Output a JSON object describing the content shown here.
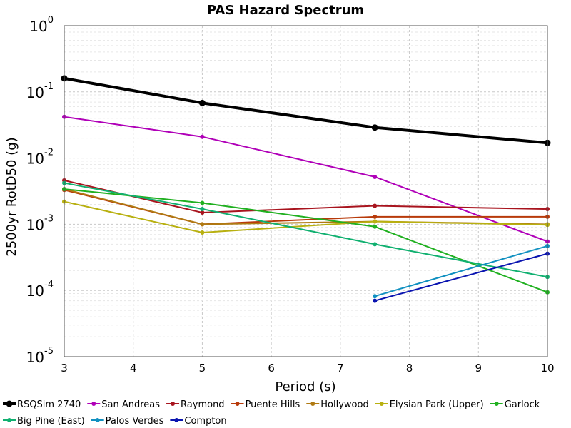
{
  "chart_data": {
    "type": "line",
    "title": "PAS Hazard Spectrum",
    "xlabel": "Period (s)",
    "ylabel": "2500yr RotD50 (g)",
    "xlim": [
      3,
      10
    ],
    "ylim": [
      1e-05,
      1
    ],
    "yscale": "log",
    "grid": true,
    "legend_position": "bottom",
    "x_ticks": [
      "3",
      "4",
      "5",
      "6",
      "7",
      "8",
      "9",
      "10"
    ],
    "y_ticks": [
      {
        "base": "10",
        "exp": "0",
        "value": 1
      },
      {
        "base": "10",
        "exp": "-1",
        "value": 0.1
      },
      {
        "base": "10",
        "exp": "-2",
        "value": 0.01
      },
      {
        "base": "10",
        "exp": "-3",
        "value": 0.001
      },
      {
        "base": "10",
        "exp": "-4",
        "value": 0.0001
      },
      {
        "base": "10",
        "exp": "-5",
        "value": 1e-05
      }
    ],
    "series": [
      {
        "name": "RSQSim 2740",
        "color": "#000000",
        "bold": true,
        "x": [
          3,
          5,
          7.5,
          10
        ],
        "y": [
          0.16,
          0.068,
          0.029,
          0.017
        ]
      },
      {
        "name": "San Andreas",
        "color": "#b000b8",
        "x": [
          3,
          5,
          7.5,
          10
        ],
        "y": [
          0.042,
          0.021,
          0.0052,
          0.00055
        ]
      },
      {
        "name": "Raymond",
        "color": "#a8141e",
        "x": [
          3,
          5,
          7.5,
          10
        ],
        "y": [
          0.0046,
          0.0015,
          0.0019,
          0.0017
        ]
      },
      {
        "name": "Puente Hills",
        "color": "#b83a0a",
        "x": [
          3,
          5,
          7.5,
          10
        ],
        "y": [
          0.0033,
          0.001,
          0.0013,
          0.0013
        ]
      },
      {
        "name": "Hollywood",
        "color": "#b07a12",
        "x": [
          3,
          5,
          7.5,
          10
        ],
        "y": [
          0.0034,
          0.001,
          0.0011,
          0.001
        ]
      },
      {
        "name": "Elysian Park (Upper)",
        "color": "#b8b010",
        "x": [
          3,
          5,
          7.5,
          10
        ],
        "y": [
          0.0022,
          0.00075,
          0.0011,
          0.00098
        ]
      },
      {
        "name": "Garlock",
        "color": "#20b020",
        "x": [
          3,
          5,
          7.5,
          10
        ],
        "y": [
          0.0034,
          0.0021,
          0.00092,
          9.4e-05
        ]
      },
      {
        "name": "Big Pine (East)",
        "color": "#10b070",
        "x": [
          3,
          5,
          7.5,
          10
        ],
        "y": [
          0.0042,
          0.0017,
          0.0005,
          0.00016
        ]
      },
      {
        "name": "Palos Verdes",
        "color": "#1090c0",
        "x": [
          7.5,
          10
        ],
        "y": [
          8.2e-05,
          0.00047
        ]
      },
      {
        "name": "Compton",
        "color": "#0a14b0",
        "x": [
          7.5,
          10
        ],
        "y": [
          7e-05,
          0.00036
        ]
      }
    ]
  }
}
